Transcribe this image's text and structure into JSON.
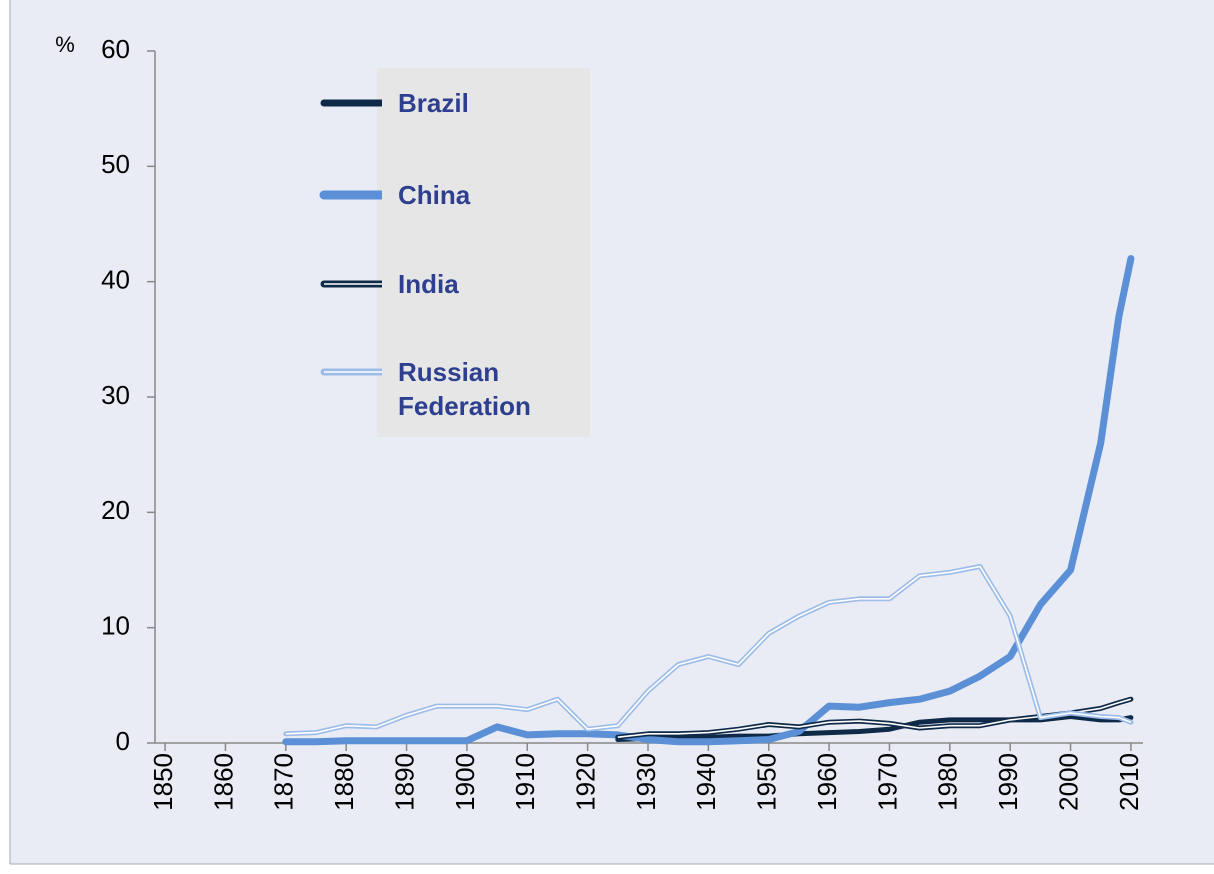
{
  "chart_data": {
    "type": "line",
    "y_label": "%",
    "x": [
      1870,
      1875,
      1880,
      1885,
      1890,
      1895,
      1900,
      1905,
      1910,
      1915,
      1920,
      1925,
      1930,
      1935,
      1940,
      1945,
      1950,
      1955,
      1960,
      1965,
      1970,
      1975,
      1980,
      1985,
      1990,
      1995,
      2000,
      2005,
      2008,
      2010
    ],
    "series": [
      {
        "name": "Brazil",
        "color": "#0f2a48",
        "style": "solid",
        "width": 5,
        "values": [
          null,
          null,
          null,
          null,
          null,
          null,
          null,
          null,
          null,
          null,
          null,
          0.3,
          0.4,
          0.5,
          0.5,
          0.6,
          0.6,
          0.8,
          0.9,
          1.0,
          1.2,
          1.8,
          2.0,
          2.0,
          2.0,
          2.0,
          2.3,
          2.0,
          2.0,
          2.2
        ]
      },
      {
        "name": "China",
        "color": "#5b8fd6",
        "style": "solid",
        "width": 7,
        "values": [
          0.1,
          0.1,
          0.2,
          0.2,
          0.2,
          0.2,
          0.2,
          1.4,
          0.7,
          0.8,
          0.8,
          0.7,
          0.3,
          0.1,
          0.1,
          0.2,
          0.3,
          1.0,
          3.2,
          3.1,
          3.5,
          3.8,
          4.5,
          5.8,
          7.5,
          12,
          15,
          26,
          37,
          42
        ]
      },
      {
        "name": "India",
        "color": "#0f2a48",
        "style": "double",
        "width": 5,
        "values": [
          null,
          null,
          null,
          null,
          null,
          null,
          null,
          null,
          null,
          null,
          null,
          0.5,
          0.8,
          0.8,
          0.9,
          1.2,
          1.6,
          1.4,
          1.8,
          1.9,
          1.7,
          1.3,
          1.5,
          1.5,
          2.0,
          2.3,
          2.6,
          3.0,
          3.5,
          3.8
        ]
      },
      {
        "name": "Russian Federation",
        "color": "#9dbde8",
        "style": "double",
        "width": 5,
        "values": [
          0.8,
          0.9,
          1.5,
          1.4,
          2.4,
          3.2,
          3.2,
          3.2,
          2.9,
          3.8,
          1.2,
          1.5,
          4.5,
          6.8,
          7.5,
          6.8,
          9.5,
          11,
          12.2,
          12.5,
          12.5,
          14.5,
          14.8,
          15.3,
          11,
          2.2,
          2.6,
          2.3,
          2.2,
          1.8
        ]
      }
    ],
    "xlim": [
      1848,
      2012
    ],
    "xticks": [
      1850,
      1860,
      1870,
      1880,
      1890,
      1900,
      1910,
      1920,
      1930,
      1940,
      1950,
      1960,
      1970,
      1980,
      1990,
      2000,
      2010
    ],
    "ylim": [
      0,
      60
    ],
    "yticks": [
      0,
      10,
      20,
      30,
      40,
      50,
      60
    ],
    "grid": false,
    "legend": "top-left"
  }
}
